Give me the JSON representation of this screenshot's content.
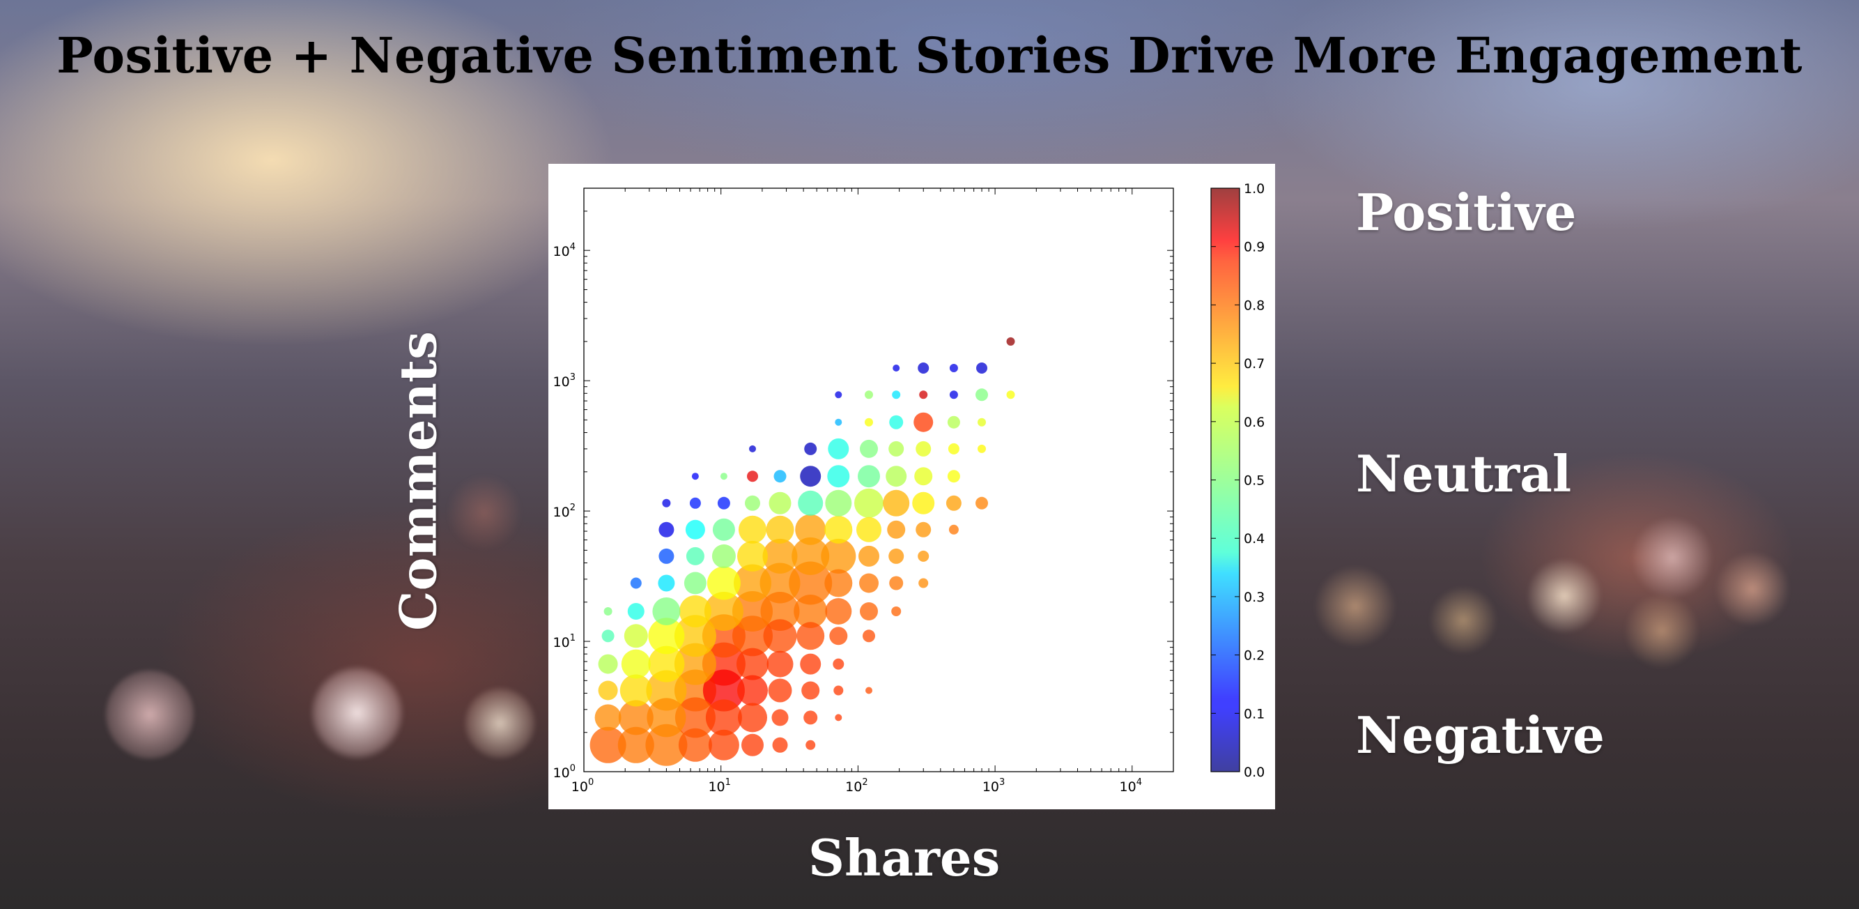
{
  "headline": "Positive + Negative Sentiment Stories Drive More Engagement",
  "axis_titles": {
    "y": "Comments",
    "x": "Shares"
  },
  "sentiment_labels": {
    "top": "Positive",
    "middle": "Neutral",
    "bottom": "Negative"
  },
  "chart_data": {
    "type": "scatter",
    "xscale": "log",
    "yscale": "log",
    "xlim": [
      1,
      20000
    ],
    "ylim": [
      1,
      30000
    ],
    "xlabel": "Shares",
    "ylabel": "Comments",
    "xticks": [
      {
        "base": "10",
        "exp": "0"
      },
      {
        "base": "10",
        "exp": "1"
      },
      {
        "base": "10",
        "exp": "2"
      },
      {
        "base": "10",
        "exp": "3"
      },
      {
        "base": "10",
        "exp": "4"
      }
    ],
    "yticks": [
      {
        "base": "10",
        "exp": "0"
      },
      {
        "base": "10",
        "exp": "1"
      },
      {
        "base": "10",
        "exp": "2"
      },
      {
        "base": "10",
        "exp": "3"
      },
      {
        "base": "10",
        "exp": "4"
      }
    ],
    "colorbar": {
      "label_values": [
        "0.0",
        "0.1",
        "0.2",
        "0.3",
        "0.4",
        "0.5",
        "0.6",
        "0.7",
        "0.8",
        "0.9",
        "1.0"
      ],
      "range": [
        0,
        1
      ],
      "colormap": "jet"
    },
    "point_fields": [
      "shares",
      "comments",
      "size",
      "sentiment"
    ],
    "points": [
      [
        1.5,
        1.6,
        26,
        0.78
      ],
      [
        2.4,
        1.6,
        26,
        0.76
      ],
      [
        4.0,
        1.6,
        30,
        0.76
      ],
      [
        6.5,
        1.6,
        24,
        0.79
      ],
      [
        10.5,
        1.6,
        22,
        0.81
      ],
      [
        17,
        1.6,
        16,
        0.82
      ],
      [
        27,
        1.6,
        11,
        0.82
      ],
      [
        45,
        1.6,
        7,
        0.82
      ],
      [
        1.5,
        2.6,
        19,
        0.74
      ],
      [
        2.4,
        2.6,
        25,
        0.75
      ],
      [
        4.0,
        2.6,
        28,
        0.74
      ],
      [
        6.5,
        2.6,
        29,
        0.79
      ],
      [
        10.5,
        2.6,
        26,
        0.82
      ],
      [
        17,
        2.6,
        21,
        0.82
      ],
      [
        27,
        2.6,
        12,
        0.82
      ],
      [
        45,
        2.6,
        10,
        0.82
      ],
      [
        72,
        2.6,
        5,
        0.82
      ],
      [
        1.5,
        4.2,
        14,
        0.68
      ],
      [
        2.4,
        4.2,
        23,
        0.66
      ],
      [
        4.0,
        4.2,
        29,
        0.7
      ],
      [
        6.5,
        4.2,
        30,
        0.76
      ],
      [
        10.5,
        4.2,
        30,
        0.88
      ],
      [
        17,
        4.2,
        22,
        0.84
      ],
      [
        27,
        4.2,
        17,
        0.82
      ],
      [
        45,
        4.2,
        13,
        0.82
      ],
      [
        72,
        4.2,
        7,
        0.82
      ],
      [
        120,
        4.2,
        5,
        0.8
      ],
      [
        1.5,
        6.7,
        14,
        0.55
      ],
      [
        2.4,
        6.7,
        21,
        0.61
      ],
      [
        4.0,
        6.7,
        26,
        0.65
      ],
      [
        6.5,
        6.7,
        30,
        0.72
      ],
      [
        10.5,
        6.7,
        31,
        0.84
      ],
      [
        17,
        6.7,
        23,
        0.82
      ],
      [
        27,
        6.7,
        19,
        0.82
      ],
      [
        45,
        6.7,
        15,
        0.82
      ],
      [
        72,
        6.7,
        8,
        0.82
      ],
      [
        1.5,
        11,
        9,
        0.45
      ],
      [
        2.4,
        11,
        17,
        0.58
      ],
      [
        4.0,
        11,
        26,
        0.62
      ],
      [
        6.5,
        11,
        30,
        0.68
      ],
      [
        10.5,
        11,
        31,
        0.8
      ],
      [
        17,
        11,
        29,
        0.79
      ],
      [
        27,
        11,
        24,
        0.8
      ],
      [
        45,
        11,
        20,
        0.8
      ],
      [
        72,
        11,
        13,
        0.8
      ],
      [
        120,
        11,
        9,
        0.8
      ],
      [
        1.5,
        17,
        6,
        0.5
      ],
      [
        2.4,
        17,
        12,
        0.4
      ],
      [
        4.0,
        17,
        20,
        0.5
      ],
      [
        6.5,
        17,
        23,
        0.66
      ],
      [
        10.5,
        17,
        28,
        0.7
      ],
      [
        17,
        17,
        29,
        0.76
      ],
      [
        27,
        17,
        28,
        0.76
      ],
      [
        45,
        17,
        24,
        0.76
      ],
      [
        72,
        17,
        19,
        0.78
      ],
      [
        120,
        17,
        13,
        0.78
      ],
      [
        190,
        17,
        7,
        0.78
      ],
      [
        2.4,
        28,
        8,
        0.22
      ],
      [
        4.0,
        28,
        12,
        0.35
      ],
      [
        6.5,
        28,
        16,
        0.5
      ],
      [
        10.5,
        28,
        24,
        0.62
      ],
      [
        17,
        28,
        27,
        0.72
      ],
      [
        27,
        28,
        29,
        0.74
      ],
      [
        45,
        28,
        31,
        0.76
      ],
      [
        72,
        28,
        20,
        0.76
      ],
      [
        120,
        28,
        14,
        0.76
      ],
      [
        190,
        28,
        10,
        0.76
      ],
      [
        300,
        28,
        7,
        0.74
      ],
      [
        4.0,
        45,
        11,
        0.2
      ],
      [
        6.5,
        45,
        13,
        0.45
      ],
      [
        10.5,
        45,
        17,
        0.52
      ],
      [
        17,
        45,
        22,
        0.66
      ],
      [
        27,
        45,
        25,
        0.72
      ],
      [
        45,
        45,
        27,
        0.73
      ],
      [
        72,
        45,
        25,
        0.73
      ],
      [
        120,
        45,
        15,
        0.73
      ],
      [
        190,
        45,
        11,
        0.73
      ],
      [
        300,
        45,
        8,
        0.73
      ],
      [
        4.0,
        72,
        11,
        0.1
      ],
      [
        6.5,
        72,
        14,
        0.38
      ],
      [
        10.5,
        72,
        16,
        0.48
      ],
      [
        17,
        72,
        20,
        0.66
      ],
      [
        27,
        72,
        20,
        0.68
      ],
      [
        45,
        72,
        22,
        0.72
      ],
      [
        72,
        72,
        20,
        0.65
      ],
      [
        120,
        72,
        18,
        0.65
      ],
      [
        190,
        72,
        13,
        0.73
      ],
      [
        300,
        72,
        11,
        0.73
      ],
      [
        500,
        72,
        7,
        0.76
      ],
      [
        4.0,
        115,
        6,
        0.1
      ],
      [
        6.5,
        115,
        8,
        0.15
      ],
      [
        10.5,
        115,
        9,
        0.15
      ],
      [
        17,
        115,
        11,
        0.52
      ],
      [
        27,
        115,
        16,
        0.55
      ],
      [
        45,
        115,
        18,
        0.45
      ],
      [
        72,
        115,
        19,
        0.52
      ],
      [
        120,
        115,
        21,
        0.57
      ],
      [
        190,
        115,
        19,
        0.7
      ],
      [
        300,
        115,
        16,
        0.64
      ],
      [
        500,
        115,
        11,
        0.72
      ],
      [
        800,
        115,
        9,
        0.75
      ],
      [
        6.5,
        185,
        5,
        0.12
      ],
      [
        10.5,
        185,
        5,
        0.5
      ],
      [
        17,
        185,
        8,
        0.9
      ],
      [
        27,
        185,
        9,
        0.3
      ],
      [
        45,
        185,
        15,
        0.05
      ],
      [
        72,
        185,
        16,
        0.4
      ],
      [
        120,
        185,
        16,
        0.48
      ],
      [
        190,
        185,
        15,
        0.55
      ],
      [
        300,
        185,
        13,
        0.6
      ],
      [
        500,
        185,
        9,
        0.62
      ],
      [
        17,
        300,
        5,
        0.08
      ],
      [
        45,
        300,
        9,
        0.06
      ],
      [
        72,
        300,
        15,
        0.4
      ],
      [
        120,
        300,
        13,
        0.5
      ],
      [
        190,
        300,
        11,
        0.55
      ],
      [
        300,
        300,
        11,
        0.6
      ],
      [
        500,
        300,
        8,
        0.62
      ],
      [
        800,
        300,
        6,
        0.63
      ],
      [
        72,
        480,
        5,
        0.3
      ],
      [
        120,
        480,
        6,
        0.62
      ],
      [
        190,
        480,
        10,
        0.4
      ],
      [
        300,
        480,
        14,
        0.82
      ],
      [
        500,
        480,
        9,
        0.55
      ],
      [
        800,
        480,
        6,
        0.6
      ],
      [
        72,
        780,
        5,
        0.1
      ],
      [
        120,
        780,
        6,
        0.52
      ],
      [
        190,
        780,
        6,
        0.35
      ],
      [
        300,
        780,
        6,
        0.92
      ],
      [
        500,
        780,
        6,
        0.1
      ],
      [
        800,
        780,
        9,
        0.5
      ],
      [
        1300,
        780,
        6,
        0.62
      ],
      [
        190,
        1250,
        5,
        0.1
      ],
      [
        300,
        1250,
        8,
        0.08
      ],
      [
        500,
        1250,
        6,
        0.1
      ],
      [
        800,
        1250,
        8,
        0.08
      ],
      [
        1300,
        2000,
        6,
        0.98
      ]
    ]
  }
}
